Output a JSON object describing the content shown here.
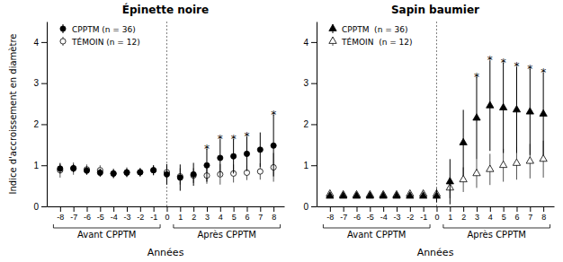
{
  "chart_data": [
    {
      "type": "scatter",
      "title": "Épinette noire",
      "xlabel": "Années",
      "ylabel": "Indice d'accroissement en diamètre",
      "x": [
        -8,
        -7,
        -6,
        -5,
        -4,
        -3,
        -2,
        -1,
        0,
        1,
        2,
        3,
        4,
        5,
        6,
        7,
        8
      ],
      "xlim": [
        -9.0,
        8.8
      ],
      "xticks": [
        -8,
        -7,
        -6,
        -5,
        -4,
        -3,
        -2,
        -1,
        0,
        1,
        2,
        3,
        4,
        5,
        6,
        7,
        8
      ],
      "ylim": [
        0,
        4.5
      ],
      "yticks": [
        0,
        1,
        2,
        3,
        4
      ],
      "legend": "upper left",
      "series": [
        {
          "name": "CPPTM (n = 36)",
          "color": "#000000",
          "marker": "filled-circle",
          "values": [
            0.92,
            0.93,
            0.87,
            0.82,
            0.8,
            0.82,
            0.83,
            0.88,
            0.78,
            0.7,
            0.78,
            1.0,
            1.18,
            1.22,
            1.28,
            1.38,
            1.48
          ],
          "errors": [
            0.12,
            0.1,
            0.1,
            0.1,
            0.1,
            0.1,
            0.1,
            0.12,
            0.25,
            0.32,
            0.28,
            0.4,
            0.45,
            0.42,
            0.42,
            0.42,
            0.75
          ]
        },
        {
          "name": "TÉMOIN (n = 12)",
          "color": "#555555",
          "marker": "open-circle",
          "values": [
            0.88,
            0.92,
            0.9,
            0.88,
            0.8,
            0.83,
            0.83,
            0.88,
            0.83,
            0.73,
            0.75,
            0.75,
            0.78,
            0.8,
            0.82,
            0.85,
            0.95
          ],
          "errors": [
            0.18,
            0.15,
            0.12,
            0.12,
            0.12,
            0.12,
            0.1,
            0.12,
            0.15,
            0.2,
            0.18,
            0.2,
            0.25,
            0.22,
            0.18,
            0.2,
            0.35
          ]
        }
      ],
      "annotations": [
        {
          "type": "vline",
          "x": 0,
          "line_style": "dotted"
        },
        {
          "text": "*",
          "x": 3
        },
        {
          "text": "*",
          "x": 4
        },
        {
          "text": "*",
          "x": 5
        },
        {
          "text": "*",
          "x": 6
        },
        {
          "text": "*",
          "x": 8
        },
        {
          "text": "Avant CPPTM",
          "x": [
            -8,
            -1
          ]
        },
        {
          "text": "Après CPPTM",
          "x": [
            1,
            8
          ]
        }
      ]
    },
    {
      "type": "scatter",
      "title": "Sapin baumier",
      "xlabel": "Années",
      "x": [
        -8,
        -7,
        -6,
        -5,
        -4,
        -3,
        -2,
        -1,
        0,
        1,
        2,
        3,
        4,
        5,
        6,
        7,
        8
      ],
      "xlim": [
        -9.0,
        8.8
      ],
      "xticks": [
        -8,
        -7,
        -6,
        -5,
        -4,
        -3,
        -2,
        -1,
        0,
        1,
        2,
        3,
        4,
        5,
        6,
        7,
        8
      ],
      "ylim": [
        0,
        4.5
      ],
      "yticks": [
        0,
        1,
        2,
        3,
        4
      ],
      "legend": "upper left",
      "series": [
        {
          "name": "CPPTM  (n = 36)",
          "color": "#000000",
          "marker": "filled-triangle",
          "values": [
            0.25,
            0.25,
            0.25,
            0.25,
            0.25,
            0.25,
            0.25,
            0.25,
            0.25,
            0.6,
            1.55,
            2.15,
            2.45,
            2.4,
            2.35,
            2.3,
            2.25
          ],
          "errors": [
            0.05,
            0.05,
            0.05,
            0.05,
            0.05,
            0.05,
            0.05,
            0.05,
            0.15,
            0.55,
            0.8,
            1.0,
            1.1,
            1.1,
            1.05,
            1.05,
            1.0
          ]
        },
        {
          "name": "TÉMOIN  (n = 12)",
          "color": "#555555",
          "marker": "open-triangle",
          "values": [
            0.3,
            0.28,
            0.28,
            0.28,
            0.28,
            0.28,
            0.3,
            0.3,
            0.3,
            0.45,
            0.65,
            0.8,
            0.9,
            1.0,
            1.05,
            1.1,
            1.15
          ],
          "errors": [
            0.08,
            0.08,
            0.08,
            0.08,
            0.08,
            0.08,
            0.08,
            0.08,
            0.15,
            0.25,
            0.3,
            0.35,
            0.38,
            0.4,
            0.4,
            0.42,
            0.45
          ]
        }
      ],
      "annotations": [
        {
          "type": "vline",
          "x": 0,
          "line_style": "dotted"
        },
        {
          "text": "*",
          "x": 3
        },
        {
          "text": "*",
          "x": 4
        },
        {
          "text": "*",
          "x": 5
        },
        {
          "text": "*",
          "x": 6
        },
        {
          "text": "*",
          "x": 7
        },
        {
          "text": "*",
          "x": 8
        },
        {
          "text": "Avant CPPTM",
          "x": [
            -8,
            -1
          ]
        },
        {
          "text": "Après CPPTM",
          "x": [
            1,
            8
          ]
        }
      ]
    }
  ]
}
